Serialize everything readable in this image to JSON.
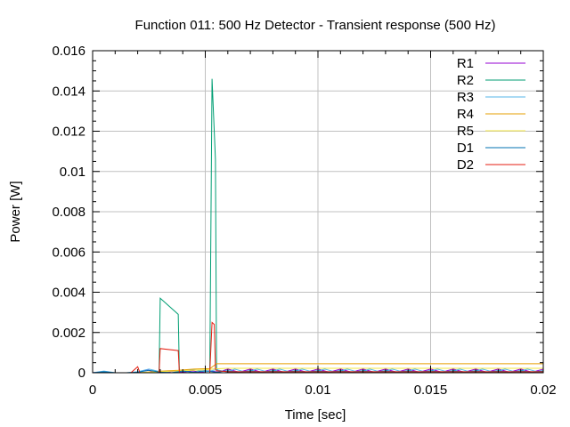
{
  "chart_data": {
    "type": "line",
    "title": "Function 011: 500 Hz Detector - Transient response (500 Hz)",
    "xlabel": "Time [sec]",
    "ylabel": "Power [W]",
    "xlim": [
      0,
      0.02
    ],
    "ylim": [
      0,
      0.016
    ],
    "x_ticks": [
      0,
      0.005,
      0.01,
      0.015,
      0.02
    ],
    "x_tick_labels": [
      "0",
      "0.005",
      "0.01",
      "0.015",
      "0.02"
    ],
    "y_ticks": [
      0,
      0.002,
      0.004,
      0.006,
      0.008,
      0.01,
      0.012,
      0.014,
      0.016
    ],
    "y_tick_labels": [
      "0",
      "0.002",
      "0.004",
      "0.006",
      "0.008",
      "0.01",
      "0.012",
      "0.014",
      "0.016"
    ],
    "grid": true,
    "legend_position": "top-right",
    "series": [
      {
        "name": "R1",
        "color": "#9400d3",
        "points": [
          [
            0,
            0
          ],
          [
            0.0004,
            5e-05
          ],
          [
            0.0008,
            0
          ],
          [
            0.0012,
            0
          ],
          [
            0.0016,
            0
          ],
          [
            0.002,
            2e-05
          ],
          [
            0.0024,
            0.00015
          ],
          [
            0.0028,
            2e-05
          ],
          [
            0.0032,
            0
          ],
          [
            0.0036,
            8e-05
          ],
          [
            0.004,
            2e-05
          ],
          [
            0.0044,
            0.0001
          ],
          [
            0.0048,
            2e-05
          ],
          [
            0.0052,
            0.0001
          ],
          [
            0.0056,
            3e-05
          ],
          [
            0.006,
            0.00018
          ],
          [
            0.0065,
            3e-05
          ],
          [
            0.007,
            0.00018
          ],
          [
            0.0075,
            3e-05
          ],
          [
            0.008,
            0.00018
          ],
          [
            0.0085,
            3e-05
          ],
          [
            0.009,
            0.00018
          ],
          [
            0.0095,
            3e-05
          ],
          [
            0.01,
            0.00018
          ],
          [
            0.0105,
            3e-05
          ],
          [
            0.011,
            0.00018
          ],
          [
            0.0115,
            3e-05
          ],
          [
            0.012,
            0.00018
          ],
          [
            0.0125,
            3e-05
          ],
          [
            0.013,
            0.00018
          ],
          [
            0.0135,
            3e-05
          ],
          [
            0.014,
            0.00018
          ],
          [
            0.0145,
            3e-05
          ],
          [
            0.015,
            0.00018
          ],
          [
            0.0155,
            3e-05
          ],
          [
            0.016,
            0.00018
          ],
          [
            0.0165,
            3e-05
          ],
          [
            0.017,
            0.00018
          ],
          [
            0.0175,
            3e-05
          ],
          [
            0.018,
            0.00018
          ],
          [
            0.0185,
            3e-05
          ],
          [
            0.019,
            0.00018
          ],
          [
            0.0195,
            3e-05
          ],
          [
            0.02,
            0.00018
          ]
        ]
      },
      {
        "name": "R2",
        "color": "#009e73",
        "points": [
          [
            0,
            0
          ],
          [
            0.002,
            0
          ],
          [
            0.00295,
            0
          ],
          [
            0.003,
            0.0037
          ],
          [
            0.0038,
            0.0029
          ],
          [
            0.00385,
            0
          ],
          [
            0.0052,
            0
          ],
          [
            0.0053,
            0.0146
          ],
          [
            0.00545,
            0.0106
          ],
          [
            0.0055,
            0.0002
          ],
          [
            0.0056,
            0.0001
          ],
          [
            0.006,
            5e-05
          ],
          [
            0.02,
            5e-05
          ]
        ]
      },
      {
        "name": "R3",
        "color": "#56b4e9",
        "points": [
          [
            0,
            0
          ],
          [
            0.0005,
            8e-05
          ],
          [
            0.001,
            0
          ],
          [
            0.0015,
            0
          ],
          [
            0.002,
            5e-05
          ],
          [
            0.0025,
            0.00018
          ],
          [
            0.003,
            5e-05
          ],
          [
            0.0035,
            0
          ],
          [
            0.004,
            0.0001
          ],
          [
            0.0045,
            0.00015
          ],
          [
            0.005,
            5e-05
          ],
          [
            0.0055,
            0.00015
          ],
          [
            0.006,
            3e-05
          ],
          [
            0.0063,
            0.00018
          ],
          [
            0.0068,
            3e-05
          ],
          [
            0.0073,
            0.00018
          ],
          [
            0.0078,
            3e-05
          ],
          [
            0.0083,
            0.00018
          ],
          [
            0.0088,
            3e-05
          ],
          [
            0.0093,
            0.00018
          ],
          [
            0.0098,
            3e-05
          ],
          [
            0.0103,
            0.00018
          ],
          [
            0.0108,
            3e-05
          ],
          [
            0.0113,
            0.00018
          ],
          [
            0.0118,
            3e-05
          ],
          [
            0.0123,
            0.00018
          ],
          [
            0.0128,
            3e-05
          ],
          [
            0.0133,
            0.00018
          ],
          [
            0.0138,
            3e-05
          ],
          [
            0.0143,
            0.00018
          ],
          [
            0.0148,
            3e-05
          ],
          [
            0.0153,
            0.00018
          ],
          [
            0.0158,
            3e-05
          ],
          [
            0.0163,
            0.00018
          ],
          [
            0.0168,
            3e-05
          ],
          [
            0.0173,
            0.00018
          ],
          [
            0.0178,
            3e-05
          ],
          [
            0.0183,
            0.00018
          ],
          [
            0.0188,
            3e-05
          ],
          [
            0.0193,
            0.00018
          ],
          [
            0.0198,
            3e-05
          ],
          [
            0.02,
            0.0001
          ]
        ]
      },
      {
        "name": "R4",
        "color": "#e69f00",
        "points": [
          [
            0,
            0
          ],
          [
            0.002,
            0
          ],
          [
            0.003,
            8e-05
          ],
          [
            0.0038,
            0.00012
          ],
          [
            0.0045,
            0.00018
          ],
          [
            0.005,
            0.0002
          ],
          [
            0.0052,
            0.0002
          ],
          [
            0.0055,
            0.00045
          ],
          [
            0.02,
            0.00045
          ]
        ]
      },
      {
        "name": "R5",
        "color": "#f0e442",
        "points": [
          [
            0,
            0
          ],
          [
            0.002,
            0
          ],
          [
            0.003,
            5e-05
          ],
          [
            0.004,
            0.0001
          ],
          [
            0.005,
            0.00015
          ],
          [
            0.0055,
            0.0002
          ],
          [
            0.006,
            0.00022
          ],
          [
            0.02,
            0.00022
          ]
        ]
      },
      {
        "name": "D1",
        "color": "#0072b2",
        "points": [
          [
            0,
            0
          ],
          [
            0.0005,
            5e-05
          ],
          [
            0.001,
            0
          ],
          [
            0.0015,
            0
          ],
          [
            0.002,
            3e-05
          ],
          [
            0.0025,
            0.00012
          ],
          [
            0.003,
            3e-05
          ],
          [
            0.0035,
            0
          ],
          [
            0.004,
            8e-05
          ],
          [
            0.0045,
            3e-05
          ],
          [
            0.005,
            0.0001
          ],
          [
            0.0055,
            3e-05
          ],
          [
            0.006,
            0.0001
          ],
          [
            0.0065,
            3e-05
          ],
          [
            0.007,
            0.0001
          ],
          [
            0.0075,
            3e-05
          ],
          [
            0.008,
            0.0001
          ],
          [
            0.0085,
            3e-05
          ],
          [
            0.009,
            0.0001
          ],
          [
            0.0095,
            3e-05
          ],
          [
            0.01,
            0.0001
          ],
          [
            0.0105,
            3e-05
          ],
          [
            0.011,
            0.0001
          ],
          [
            0.0115,
            3e-05
          ],
          [
            0.012,
            0.0001
          ],
          [
            0.0125,
            3e-05
          ],
          [
            0.013,
            0.0001
          ],
          [
            0.0135,
            3e-05
          ],
          [
            0.014,
            0.0001
          ],
          [
            0.0145,
            3e-05
          ],
          [
            0.015,
            0.0001
          ],
          [
            0.0155,
            3e-05
          ],
          [
            0.016,
            0.0001
          ],
          [
            0.0165,
            3e-05
          ],
          [
            0.017,
            0.0001
          ],
          [
            0.0175,
            3e-05
          ],
          [
            0.018,
            0.0001
          ],
          [
            0.0185,
            3e-05
          ],
          [
            0.019,
            0.0001
          ],
          [
            0.0195,
            3e-05
          ],
          [
            0.02,
            0.0001
          ]
        ]
      },
      {
        "name": "D2",
        "color": "#e51e10",
        "points": [
          [
            0,
            0
          ],
          [
            0.0017,
            0
          ],
          [
            0.002,
            0.0003
          ],
          [
            0.0021,
            0
          ],
          [
            0.00295,
            0
          ],
          [
            0.003,
            0.0012
          ],
          [
            0.0038,
            0.0011
          ],
          [
            0.00385,
            0
          ],
          [
            0.0052,
            0
          ],
          [
            0.0053,
            0.0025
          ],
          [
            0.0054,
            0.0024
          ],
          [
            0.00545,
            0.0002
          ],
          [
            0.0055,
            0.0001
          ],
          [
            0.006,
            5e-05
          ],
          [
            0.02,
            5e-05
          ]
        ]
      }
    ]
  }
}
